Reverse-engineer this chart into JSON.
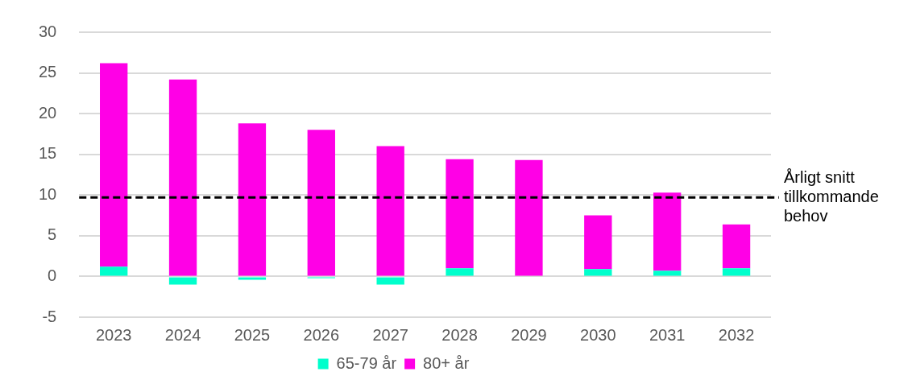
{
  "chart_data": {
    "type": "bar",
    "stacked": true,
    "categories": [
      "2023",
      "2024",
      "2025",
      "2026",
      "2027",
      "2028",
      "2029",
      "2030",
      "2031",
      "2032"
    ],
    "series": [
      {
        "name": "65-79 år",
        "color": "#00ffcc",
        "values": [
          1.2,
          -1.0,
          -0.4,
          -0.2,
          -1.0,
          1.0,
          0,
          0.9,
          0.7,
          1.0
        ]
      },
      {
        "name": "80+ år",
        "color": "#ff00e6",
        "values": [
          25.0,
          24.2,
          18.8,
          18.0,
          16.0,
          13.4,
          14.3,
          6.6,
          9.6,
          5.4
        ]
      }
    ],
    "ylim": [
      -5,
      30
    ],
    "yticks": [
      -5,
      0,
      5,
      10,
      15,
      20,
      25,
      30
    ],
    "grid": "y",
    "legend": "bottom",
    "ref_lines": [
      {
        "axis": "y",
        "value": 9.7,
        "label": "Årligt snitt tillkommande behov",
        "color": "#000000",
        "line_style": "dashed"
      }
    ]
  }
}
